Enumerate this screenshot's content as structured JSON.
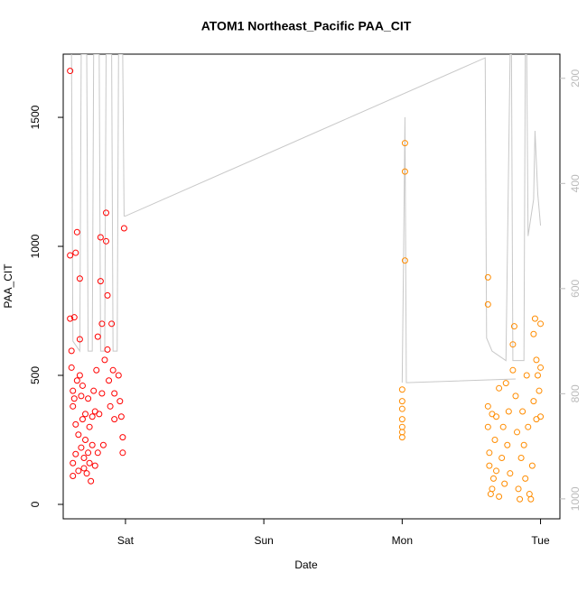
{
  "chart_data": {
    "type": "scatter",
    "title": "ATOM1 Northeast_Pacific PAA_CIT",
    "x_label": "Date",
    "y_label": "PAA_CIT",
    "xlim": [
      -0.45,
      3.14
    ],
    "xticks": [
      {
        "value": 0,
        "label": "Sat"
      },
      {
        "value": 1,
        "label": "Sun"
      },
      {
        "value": 2,
        "label": "Mon"
      },
      {
        "value": 3,
        "label": "Tue"
      }
    ],
    "ylim": [
      -56,
      1745
    ],
    "yticks": [
      0,
      500,
      1000,
      1500
    ],
    "y2lim": [
      1038,
      154
    ],
    "y2ticks": [
      200,
      400,
      600,
      800,
      1000
    ],
    "series": [
      {
        "color": "#c8c8c8",
        "axis": "y2",
        "line": true,
        "x": [
          -0.39,
          -0.38,
          -0.33,
          -0.32,
          -0.28,
          -0.27,
          -0.24,
          -0.23,
          -0.19,
          -0.18,
          -0.15,
          -0.14,
          -0.1,
          -0.09,
          -0.06,
          -0.05,
          -0.02,
          -0.01,
          0.0,
          2.6,
          2.61,
          2.65,
          2.75,
          2.78,
          2.79,
          2.8,
          2.88,
          2.89,
          2.9,
          2.91,
          2.95,
          2.96,
          2.98,
          3.0,
          null,
          2.0,
          2.01,
          2.02,
          2.03,
          2.82
        ],
        "values": [
          154,
          700,
          719,
          154,
          154,
          719,
          719,
          154,
          154,
          719,
          719,
          154,
          154,
          719,
          719,
          154,
          154,
          462,
          462,
          161,
          694,
          719,
          737,
          154,
          154,
          737,
          737,
          154,
          154,
          500,
          430,
          300,
          420,
          480,
          null,
          779,
          540,
          274,
          779,
          772
        ]
      },
      {
        "color": "#ff0000",
        "x": [
          -0.4,
          -0.4,
          -0.4,
          -0.39,
          -0.39,
          -0.38,
          -0.38,
          -0.38,
          -0.38,
          -0.37,
          -0.37,
          -0.36,
          -0.36,
          -0.36,
          -0.35,
          -0.35,
          -0.34,
          -0.34,
          -0.33,
          -0.33,
          -0.33,
          -0.32,
          -0.32,
          -0.31,
          -0.31,
          -0.3,
          -0.3,
          -0.29,
          -0.29,
          -0.28,
          -0.27,
          -0.27,
          -0.26,
          -0.26,
          -0.25,
          -0.24,
          -0.24,
          -0.23,
          -0.22,
          -0.22,
          -0.21,
          -0.2,
          -0.2,
          -0.19,
          -0.18,
          -0.18,
          -0.17,
          -0.17,
          -0.16,
          -0.15,
          -0.14,
          -0.14,
          -0.13,
          -0.13,
          -0.12,
          -0.11,
          -0.1,
          -0.09,
          -0.08,
          -0.08,
          -0.05,
          -0.04,
          -0.03,
          -0.02,
          -0.02,
          -0.01
        ],
        "values": [
          1680,
          965,
          720,
          595,
          530,
          440,
          380,
          160,
          110,
          725,
          410,
          975,
          310,
          195,
          1055,
          480,
          270,
          130,
          875,
          640,
          500,
          420,
          220,
          460,
          330,
          180,
          140,
          250,
          350,
          120,
          200,
          410,
          160,
          300,
          90,
          340,
          230,
          440,
          150,
          360,
          520,
          200,
          650,
          350,
          1035,
          865,
          700,
          430,
          230,
          560,
          1130,
          1020,
          810,
          600,
          480,
          380,
          700,
          520,
          430,
          330,
          500,
          400,
          340,
          260,
          200,
          1070
        ]
      },
      {
        "color": "#ff8c00",
        "x": [
          2.0,
          2.0,
          2.0,
          2.0,
          2.0,
          2.0,
          2.0,
          2.02,
          2.02,
          2.02,
          2.62,
          2.62,
          2.62,
          2.62,
          2.63,
          2.63,
          2.64,
          2.65,
          2.65,
          2.66,
          2.67,
          2.68,
          2.68,
          2.7,
          2.7,
          2.72,
          2.73,
          2.74,
          2.75,
          2.76,
          2.77,
          2.78,
          2.8,
          2.8,
          2.81,
          2.82,
          2.83,
          2.84,
          2.85,
          2.86,
          2.87,
          2.88,
          2.89,
          2.9,
          2.91,
          2.92,
          2.93,
          2.94,
          2.95,
          2.95,
          2.96,
          2.97,
          2.97,
          2.98,
          2.99,
          3.0,
          3.0,
          3.0
        ],
        "values": [
          445,
          400,
          370,
          330,
          300,
          280,
          260,
          1400,
          1290,
          945,
          880,
          775,
          380,
          300,
          200,
          150,
          40,
          60,
          350,
          100,
          250,
          130,
          340,
          30,
          450,
          180,
          300,
          80,
          470,
          230,
          360,
          120,
          520,
          620,
          690,
          420,
          280,
          60,
          20,
          180,
          360,
          230,
          100,
          500,
          300,
          40,
          20,
          150,
          660,
          400,
          720,
          560,
          330,
          500,
          440,
          700,
          530,
          340
        ]
      }
    ]
  }
}
